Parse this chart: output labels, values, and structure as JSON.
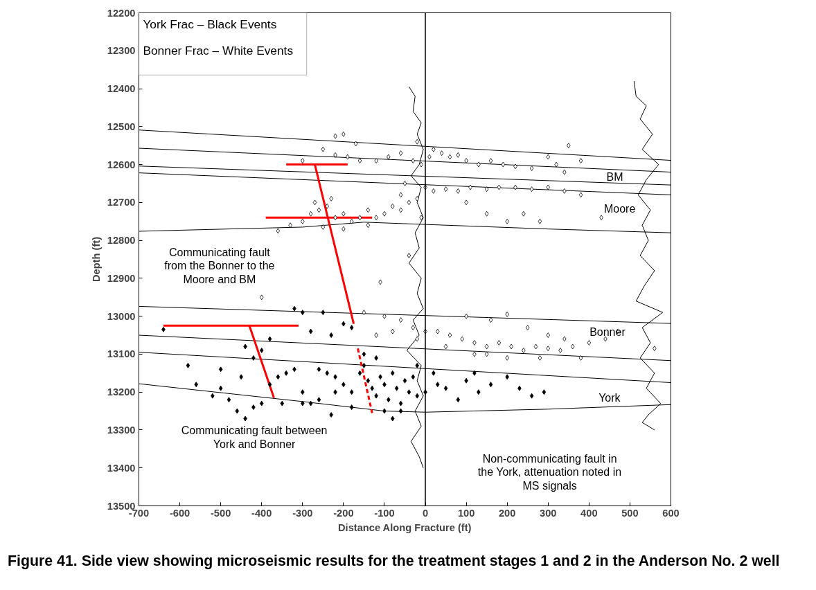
{
  "chart_data": {
    "type": "scatter",
    "title": "Figure 41.  Side view showing microseismic results for the treatment stages 1 and 2 in the Anderson No. 2 well",
    "xlabel": "Distance Along Fracture (ft)",
    "ylabel": "Depth (ft)",
    "xlim": [
      -700,
      600
    ],
    "ylim": [
      13500,
      12200
    ],
    "xticks": [
      -700,
      -600,
      -500,
      -400,
      -300,
      -200,
      -100,
      0,
      100,
      200,
      300,
      400,
      500,
      600
    ],
    "yticks": [
      12200,
      12300,
      12400,
      12500,
      12600,
      12700,
      12800,
      12900,
      13000,
      13100,
      13200,
      13300,
      13400,
      13500
    ],
    "grid": false,
    "marker": "diamond",
    "ref_lines": [
      {
        "axis": "x",
        "value": 0,
        "color": "#000000"
      }
    ],
    "annotations": [
      "York Frac – Black Events",
      "Bonner Frac – White Events",
      "BM",
      "Moore",
      "Bonner",
      "York",
      "Communicating fault\nfrom the Bonner to the\nMoore and BM",
      "Communicating fault between\nYork and Bonner",
      "Non-communicating fault in\nthe York, attenuation noted in\nMS signals"
    ],
    "series": [
      {
        "color": "#ffffff",
        "x": [
          -220,
          -200,
          -170,
          -250,
          -220,
          -190,
          -160,
          -120,
          -90,
          -60,
          -30,
          -10,
          20,
          40,
          60,
          80,
          100,
          130,
          160,
          190,
          220,
          260,
          300,
          320,
          340,
          380,
          10,
          -20,
          350,
          -300,
          -360,
          -330,
          -300,
          -280,
          -260,
          -240,
          -220,
          -200,
          -180,
          -160,
          -140,
          -120,
          -100,
          -80,
          -60,
          -40,
          -20,
          -10,
          0,
          20,
          50,
          80,
          110,
          150,
          180,
          220,
          260,
          300,
          340,
          380,
          100,
          150,
          200,
          240,
          280,
          430,
          -250,
          -200,
          -140,
          -270,
          -230,
          -60,
          -50,
          -40,
          -110,
          -400,
          -150,
          -100,
          -60,
          -30,
          0,
          30,
          60,
          90,
          120,
          150,
          180,
          210,
          240,
          270,
          300,
          330,
          360,
          400,
          440,
          470,
          100,
          160,
          200,
          250,
          300,
          340,
          560,
          120,
          200,
          280,
          -120,
          -80,
          -20,
          50,
          150,
          380
        ],
        "values": [
          12525,
          12520,
          12545,
          12560,
          12575,
          12580,
          12590,
          12590,
          12580,
          12570,
          12590,
          12600,
          12560,
          12570,
          12580,
          12575,
          12590,
          12600,
          12590,
          12600,
          12605,
          12610,
          12580,
          12600,
          12620,
          12590,
          12580,
          12540,
          12550,
          12590,
          12775,
          12760,
          12750,
          12730,
          12720,
          12710,
          12740,
          12730,
          12750,
          12740,
          12720,
          12740,
          12730,
          12710,
          12720,
          12700,
          12690,
          12740,
          12660,
          12670,
          12665,
          12670,
          12660,
          12665,
          12660,
          12660,
          12665,
          12660,
          12670,
          12680,
          12700,
          12730,
          12750,
          12730,
          12750,
          12740,
          12765,
          12770,
          12760,
          12700,
          12690,
          12680,
          12650,
          12840,
          12910,
          12950,
          12990,
          13000,
          13010,
          13030,
          13040,
          13040,
          13050,
          13060,
          13070,
          13080,
          13070,
          13080,
          13090,
          13080,
          13085,
          13090,
          13080,
          13070,
          13060,
          13040,
          13000,
          13010,
          12995,
          13030,
          13050,
          13060,
          13085,
          13100,
          13110,
          13110,
          13050,
          13040,
          13060,
          13080,
          13100,
          13110
        ]
      },
      {
        "color": "#000000",
        "x": [
          -320,
          -300,
          -250,
          -200,
          -180,
          -230,
          -280,
          -640,
          -580,
          -560,
          -520,
          -500,
          -480,
          -460,
          -440,
          -420,
          -400,
          -380,
          -360,
          -340,
          -320,
          -300,
          -280,
          -260,
          -240,
          -220,
          -200,
          -180,
          -160,
          -150,
          -140,
          -130,
          -120,
          -110,
          -100,
          -90,
          -80,
          -70,
          -60,
          -50,
          -40,
          -30,
          -20,
          0,
          20,
          50,
          80,
          100,
          130,
          160,
          200,
          230,
          260,
          290,
          -500,
          -450,
          -420,
          -400,
          -380,
          -100,
          -80,
          -180,
          -220,
          -260,
          -350,
          -300,
          -230,
          -150,
          -120,
          -60,
          -20,
          30,
          120,
          -440
        ],
        "values": [
          12980,
          12990,
          12990,
          13020,
          13030,
          13050,
          13040,
          13035,
          13130,
          13180,
          13210,
          13190,
          13220,
          13250,
          13270,
          13240,
          13230,
          13180,
          13160,
          13150,
          13140,
          13200,
          13230,
          13220,
          13150,
          13160,
          13180,
          13200,
          13150,
          13130,
          13170,
          13190,
          13210,
          13160,
          13180,
          13220,
          13150,
          13190,
          13230,
          13170,
          13200,
          13160,
          13210,
          13200,
          13150,
          13190,
          13220,
          13170,
          13200,
          13180,
          13160,
          13190,
          13210,
          13200,
          13140,
          13160,
          13110,
          13090,
          13060,
          13250,
          13270,
          13240,
          13200,
          13140,
          13230,
          13230,
          13260,
          13100,
          13110,
          13250,
          13130,
          13180,
          13150,
          13080
        ]
      },
      {
        "type": "line",
        "color": "#000000",
        "marker": "none",
        "x": [
          -700,
          600
        ],
        "values": [
          12509,
          12589
        ]
      },
      {
        "type": "line",
        "color": "#000000",
        "marker": "none",
        "x": [
          -700,
          600
        ],
        "values": [
          12557,
          12620
        ]
      },
      {
        "type": "line",
        "color": "#000000",
        "marker": "none",
        "x": [
          -700,
          600
        ],
        "values": [
          12604,
          12654
        ]
      },
      {
        "type": "line",
        "color": "#000000",
        "marker": "none",
        "x": [
          -700,
          600
        ],
        "values": [
          12622,
          12680
        ]
      },
      {
        "type": "line",
        "color": "#000000",
        "marker": "none",
        "x": [
          -700,
          -300,
          -150,
          0,
          300,
          600
        ],
        "values": [
          12776,
          12765,
          12752,
          12758,
          12770,
          12780
        ]
      },
      {
        "type": "line",
        "color": "#000000",
        "marker": "none",
        "x": [
          -700,
          600
        ],
        "values": [
          12974,
          13019
        ]
      },
      {
        "type": "line",
        "color": "#000000",
        "marker": "none",
        "x": [
          -700,
          600
        ],
        "values": [
          13050,
          13117
        ]
      },
      {
        "type": "line",
        "color": "#000000",
        "marker": "none",
        "x": [
          -700,
          600
        ],
        "values": [
          13095,
          13175
        ]
      },
      {
        "type": "line",
        "color": "#000000",
        "marker": "none",
        "x": [
          -700,
          -300,
          -100,
          0,
          300,
          600
        ],
        "values": [
          13178,
          13225,
          13250,
          13253,
          13245,
          13233
        ]
      },
      {
        "type": "line",
        "color": "#000000",
        "marker": "none",
        "x": [
          -40,
          -25,
          -30,
          -10,
          -20,
          -5,
          -15,
          -35,
          -10,
          -20,
          -5,
          -25,
          -15,
          -40,
          -10,
          -20,
          -5,
          -30,
          -15,
          -45,
          -10,
          -20,
          -5,
          -25,
          -10,
          -35,
          -15,
          -5
        ],
        "values": [
          12395,
          12420,
          12460,
          12490,
          12520,
          12560,
          12600,
          12630,
          12660,
          12700,
          12740,
          12780,
          12820,
          12860,
          12900,
          12940,
          12980,
          13010,
          13050,
          13090,
          13130,
          13170,
          13210,
          13250,
          13290,
          13330,
          13370,
          13400
        ]
      },
      {
        "type": "line",
        "color": "#000000",
        "marker": "none",
        "x": [
          510,
          515,
          540,
          525,
          555,
          530,
          570,
          540,
          520,
          550,
          530,
          545,
          525,
          560,
          535,
          515,
          580,
          530,
          550,
          525,
          560,
          540,
          575,
          545,
          530,
          560
        ],
        "values": [
          12380,
          12420,
          12445,
          12480,
          12520,
          12560,
          12600,
          12640,
          12680,
          12720,
          12760,
          12800,
          12840,
          12880,
          12920,
          12960,
          12990,
          13030,
          13070,
          13110,
          13150,
          13190,
          13230,
          13260,
          13280,
          13300
        ]
      },
      {
        "type": "line",
        "color": "#ff0000",
        "marker": "none",
        "x": [
          -340,
          -190
        ],
        "values": [
          12600,
          12600
        ]
      },
      {
        "type": "line",
        "color": "#ff0000",
        "marker": "none",
        "x": [
          -390,
          -130
        ],
        "values": [
          12740,
          12740
        ]
      },
      {
        "type": "line",
        "color": "#ff0000",
        "marker": "none",
        "x": [
          -640,
          -310
        ],
        "values": [
          13025,
          13025
        ]
      },
      {
        "type": "line",
        "color": "#ff0000",
        "marker": "none",
        "x": [
          -270,
          -175
        ],
        "values": [
          12600,
          13020
        ]
      },
      {
        "type": "line",
        "color": "#ff0000",
        "marker": "none",
        "x": [
          -430,
          -370
        ],
        "values": [
          13025,
          13215
        ]
      },
      {
        "type": "line",
        "color": "#ff0000",
        "marker": "none",
        "line_style": "dashed",
        "x": [
          -165,
          -130
        ],
        "values": [
          13085,
          13255
        ]
      }
    ]
  }
}
